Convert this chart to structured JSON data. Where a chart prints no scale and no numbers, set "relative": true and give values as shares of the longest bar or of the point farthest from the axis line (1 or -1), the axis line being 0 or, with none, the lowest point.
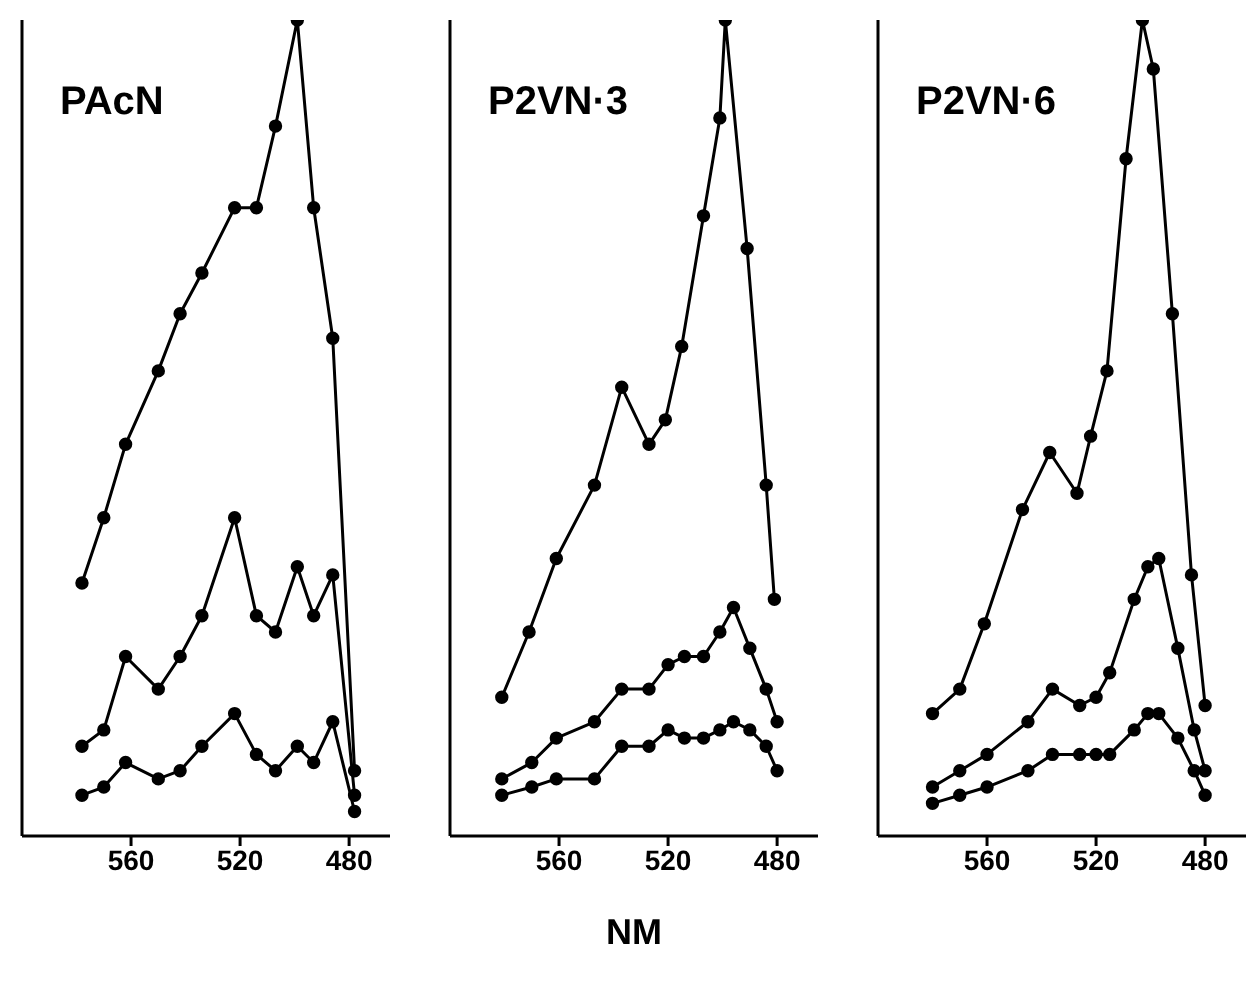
{
  "chart_data": [
    {
      "type": "line",
      "title": "PAcN",
      "relative": true,
      "x": [
        578,
        570,
        562,
        550,
        542,
        534,
        522,
        514,
        507,
        499,
        493,
        486,
        478
      ],
      "xlim": [
        600,
        465
      ],
      "xticks": [
        560,
        520,
        480
      ],
      "tick_labels": "x",
      "marker": "circle",
      "line_style": "solid",
      "grid": false,
      "series": [
        {
          "color": "#000000",
          "values": [
            0.31,
            0.39,
            0.48,
            0.57,
            0.64,
            0.69,
            0.77,
            0.77,
            0.87,
            1,
            0.77,
            0.61,
            0.08
          ]
        },
        {
          "color": "#000000",
          "values": [
            0.11,
            0.13,
            0.22,
            0.18,
            0.22,
            0.27,
            0.39,
            0.27,
            0.25,
            0.33,
            0.27,
            0.32,
            0.05
          ]
        },
        {
          "color": "#000000",
          "values": [
            0.05,
            0.06,
            0.09,
            0.07,
            0.08,
            0.11,
            0.15,
            0.1,
            0.08,
            0.11,
            0.09,
            0.14,
            0.03
          ]
        }
      ]
    },
    {
      "type": "line",
      "title": "P2VN·3",
      "xlabel": "NM",
      "relative": true,
      "x": [
        581,
        570,
        561,
        547,
        537,
        527,
        520,
        514,
        507,
        501,
        496,
        490,
        484,
        480
      ],
      "xlim": [
        600,
        465
      ],
      "xticks": [
        560,
        520,
        480
      ],
      "tick_labels": "x",
      "marker": "circle",
      "line_style": "solid",
      "grid": false,
      "series": [
        {
          "color": "#000000",
          "x": [
            581,
            571,
            561,
            547,
            537,
            527,
            521,
            515,
            507,
            501,
            499,
            491,
            484,
            481
          ],
          "values": [
            0.17,
            0.25,
            0.34,
            0.43,
            0.55,
            0.48,
            0.51,
            0.6,
            0.76,
            0.88,
            1,
            0.72,
            0.43,
            0.29
          ]
        },
        {
          "color": "#000000",
          "values": [
            0.07,
            0.09,
            0.12,
            0.14,
            0.18,
            0.18,
            0.21,
            0.22,
            0.22,
            0.25,
            0.28,
            0.23,
            0.18,
            0.14
          ]
        },
        {
          "color": "#000000",
          "values": [
            0.05,
            0.06,
            0.07,
            0.07,
            0.11,
            0.11,
            0.13,
            0.12,
            0.12,
            0.13,
            0.14,
            0.13,
            0.11,
            0.08
          ]
        }
      ]
    },
    {
      "type": "line",
      "title": "P2VN·6",
      "relative": true,
      "x": [
        580,
        570,
        560,
        545,
        536,
        526,
        520,
        515,
        506,
        501,
        497,
        490,
        484,
        480
      ],
      "xlim": [
        600,
        465
      ],
      "xticks": [
        560,
        520,
        480
      ],
      "tick_labels": "x",
      "marker": "circle",
      "line_style": "solid",
      "grid": false,
      "series": [
        {
          "color": "#000000",
          "x": [
            580,
            570,
            561,
            547,
            537,
            527,
            522,
            516,
            509,
            503,
            499,
            492,
            485,
            480
          ],
          "values": [
            0.15,
            0.18,
            0.26,
            0.4,
            0.47,
            0.42,
            0.49,
            0.57,
            0.83,
            1,
            0.94,
            0.64,
            0.32,
            0.16
          ]
        },
        {
          "color": "#000000",
          "values": [
            0.06,
            0.08,
            0.1,
            0.14,
            0.18,
            0.16,
            0.17,
            0.2,
            0.29,
            0.33,
            0.34,
            0.23,
            0.13,
            0.08
          ]
        },
        {
          "color": "#000000",
          "values": [
            0.04,
            0.05,
            0.06,
            0.08,
            0.1,
            0.1,
            0.1,
            0.1,
            0.13,
            0.15,
            0.15,
            0.12,
            0.08,
            0.05
          ]
        }
      ]
    }
  ]
}
